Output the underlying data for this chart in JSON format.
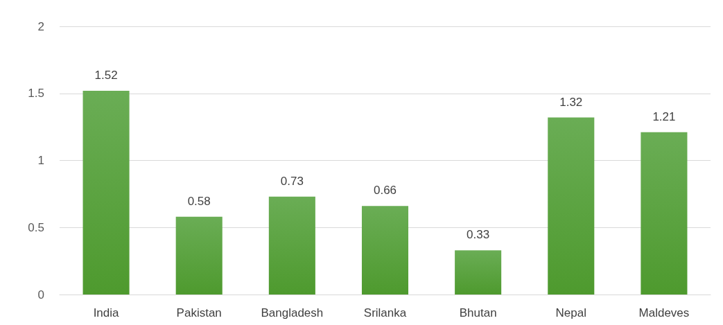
{
  "chart_data": {
    "type": "bar",
    "categories": [
      "India",
      "Pakistan",
      "Bangladesh",
      "Srilanka",
      "Bhutan",
      "Nepal",
      "Maldeves"
    ],
    "values": [
      1.52,
      0.58,
      0.73,
      0.66,
      0.33,
      1.32,
      1.21
    ],
    "color": "#4e9a2e",
    "ylim": [
      0,
      2
    ],
    "yticks": [
      0,
      0.5,
      1,
      1.5,
      2
    ],
    "grid": "y",
    "data_labels": true
  }
}
